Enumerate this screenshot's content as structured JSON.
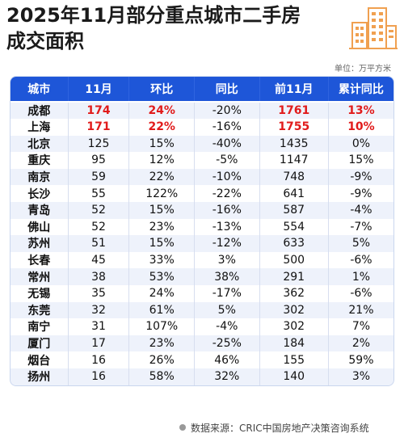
{
  "title_line1": "2025年11月部分重点城市二手房",
  "title_line2": "成交面积",
  "unit": "单位：万平方米",
  "source": "数据来源：CRIC中国房地产决策咨询系统",
  "colors": {
    "header_bg": "#1e56d8",
    "highlight": "#e11b1b",
    "logo": "#f0a050"
  },
  "icons": {
    "logo": "buildings-icon"
  },
  "chart_data": {
    "type": "table",
    "columns": [
      "城市",
      "11月",
      "环比",
      "同比",
      "前11月",
      "累计同比"
    ],
    "rows": [
      [
        "成都",
        "174",
        "24%",
        "-20%",
        "1761",
        "13%"
      ],
      [
        "上海",
        "171",
        "22%",
        "-16%",
        "1755",
        "10%"
      ],
      [
        "北京",
        "125",
        "15%",
        "-40%",
        "1435",
        "0%"
      ],
      [
        "重庆",
        "95",
        "12%",
        "-5%",
        "1147",
        "15%"
      ],
      [
        "南京",
        "59",
        "22%",
        "-10%",
        "748",
        "-9%"
      ],
      [
        "长沙",
        "55",
        "122%",
        "-22%",
        "641",
        "-9%"
      ],
      [
        "青岛",
        "52",
        "15%",
        "-16%",
        "587",
        "-4%"
      ],
      [
        "佛山",
        "52",
        "23%",
        "-13%",
        "554",
        "-7%"
      ],
      [
        "苏州",
        "51",
        "15%",
        "-12%",
        "633",
        "5%"
      ],
      [
        "长春",
        "45",
        "33%",
        "3%",
        "500",
        "-6%"
      ],
      [
        "常州",
        "38",
        "53%",
        "38%",
        "291",
        "1%"
      ],
      [
        "无锡",
        "35",
        "24%",
        "-17%",
        "362",
        "-6%"
      ],
      [
        "东莞",
        "32",
        "61%",
        "5%",
        "302",
        "21%"
      ],
      [
        "南宁",
        "31",
        "107%",
        "-4%",
        "302",
        "7%"
      ],
      [
        "厦门",
        "17",
        "23%",
        "-25%",
        "184",
        "2%"
      ],
      [
        "烟台",
        "16",
        "26%",
        "46%",
        "155",
        "59%"
      ],
      [
        "扬州",
        "16",
        "58%",
        "32%",
        "140",
        "3%"
      ]
    ],
    "highlighted_rows": [
      0,
      1
    ],
    "highlighted_columns": [
      1,
      2,
      4,
      5
    ]
  }
}
